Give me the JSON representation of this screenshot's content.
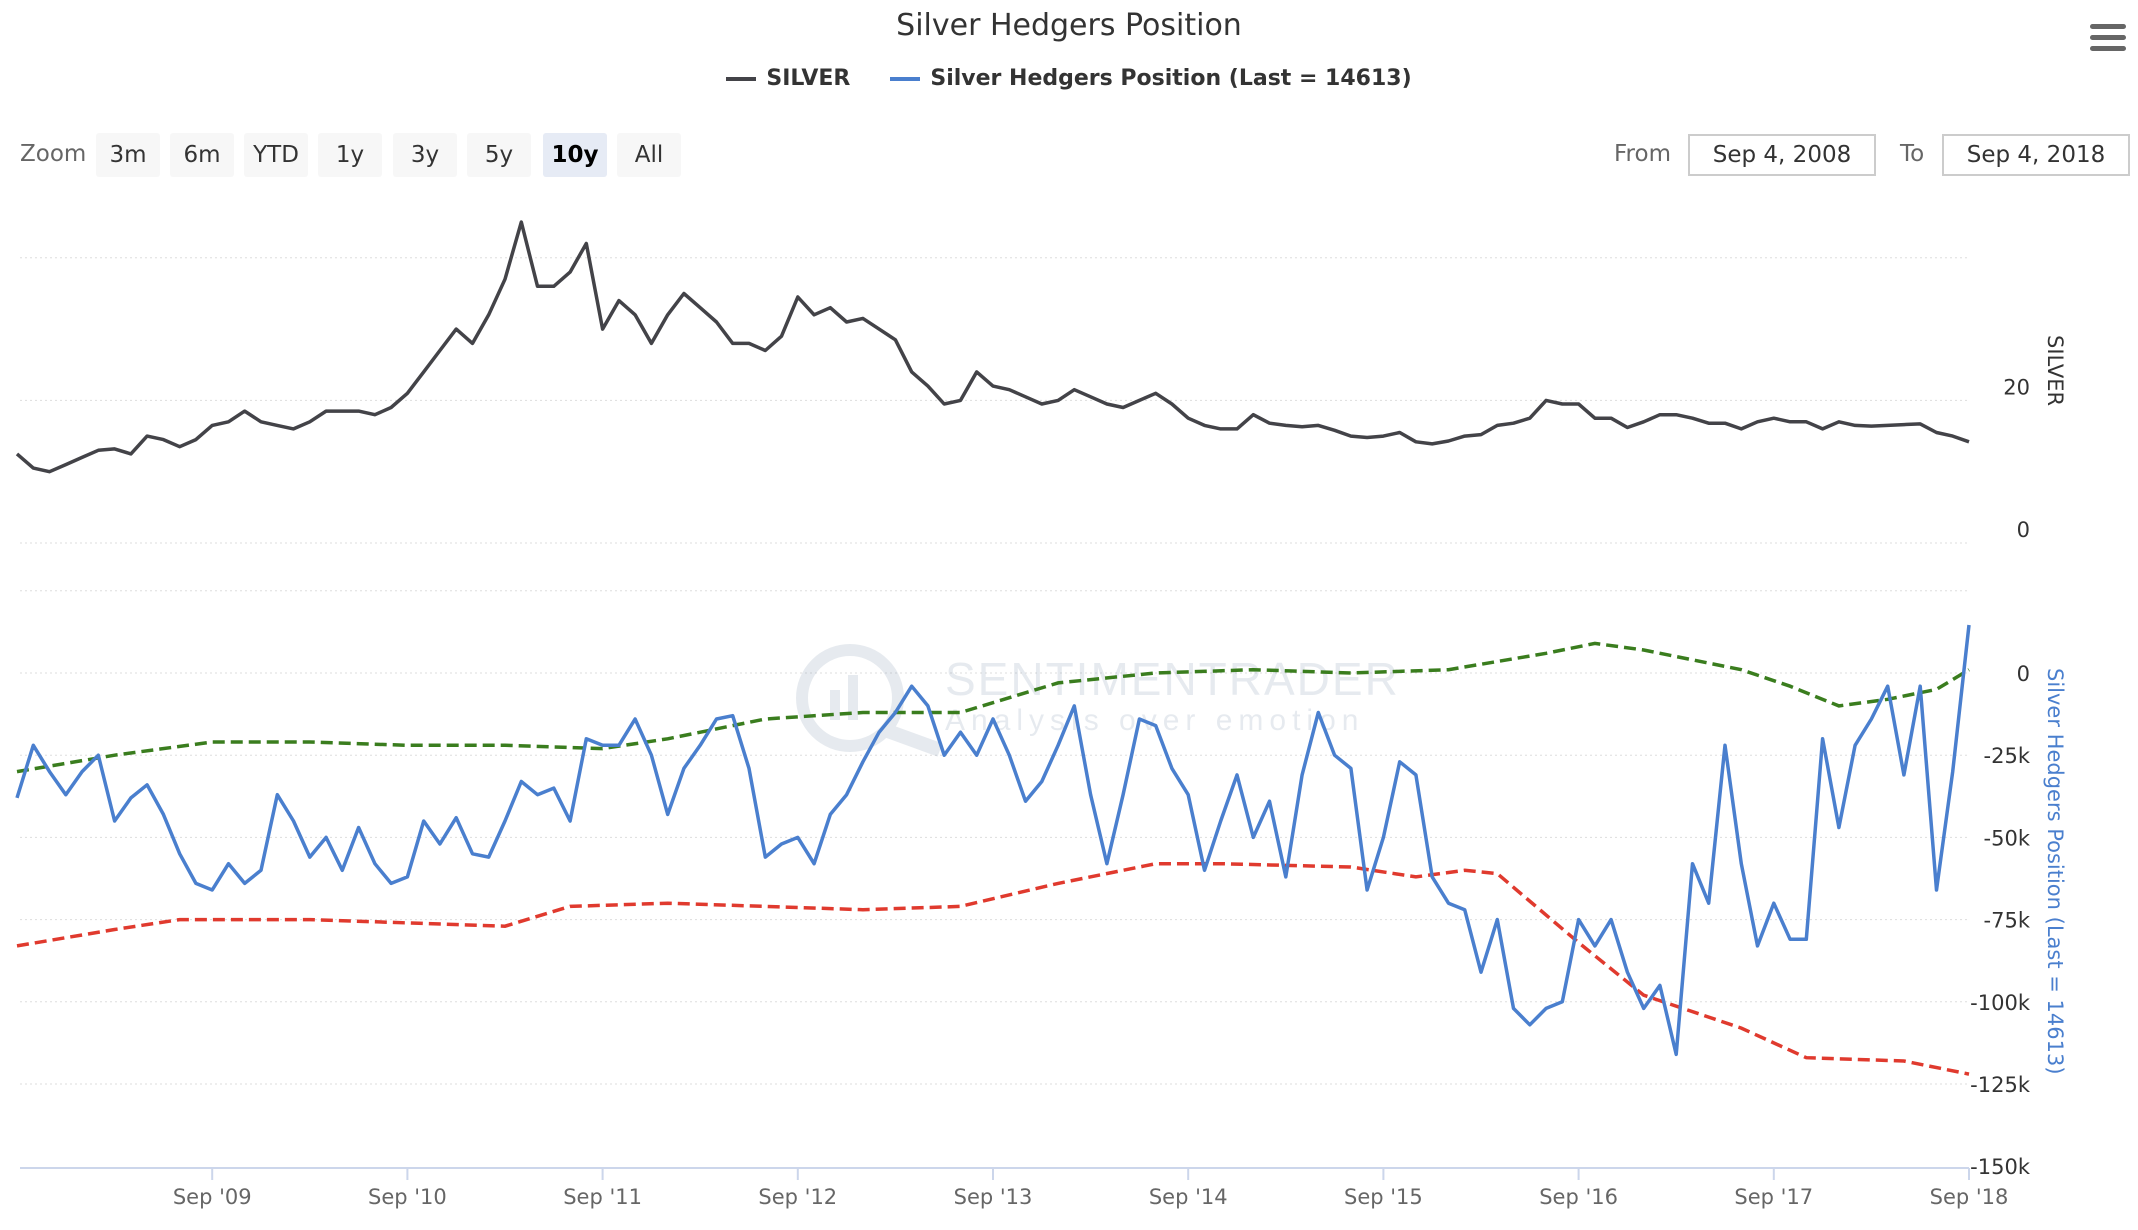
{
  "title": "Silver Hedgers Position",
  "legend": [
    {
      "label": "SILVER",
      "color": "#434348"
    },
    {
      "label": "Silver Hedgers Position (Last = 14613)",
      "color": "#4a7fce"
    }
  ],
  "range_selector": {
    "zoom_label": "Zoom",
    "buttons": [
      "3m",
      "6m",
      "YTD",
      "1y",
      "3y",
      "5y",
      "10y",
      "All"
    ],
    "active": "10y",
    "from_label": "From",
    "from_value": "Sep 4, 2008",
    "to_label": "To",
    "to_value": "Sep 4, 2018"
  },
  "watermark": {
    "brand": "SENTIMENTRADER",
    "tagline": "Analysis over emotion"
  },
  "chart_data": {
    "type": "line",
    "title": "Silver Hedgers Position",
    "x_start": "2008-09",
    "x_step": "month",
    "xticks": [
      "Sep '09",
      "Sep '10",
      "Sep '11",
      "Sep '12",
      "Sep '13",
      "Sep '14",
      "Sep '15",
      "Sep '16",
      "Sep '17",
      "Sep '18"
    ],
    "panes": [
      {
        "axis_title": "SILVER",
        "ylim": [
          0,
          50
        ],
        "yticks": [
          {
            "v": 0,
            "label": "0"
          },
          {
            "v": 20,
            "label": "20"
          },
          {
            "v": 40,
            "label": ""
          }
        ],
        "series": [
          {
            "name": "SILVER",
            "color": "#434348",
            "style": "solid",
            "values": [
              12.5,
              10.5,
              10,
              11,
              12,
              13,
              13.2,
              12.5,
              15,
              14.5,
              13.5,
              14.5,
              16.5,
              17,
              18.5,
              17,
              16.5,
              16,
              17,
              18.5,
              18.5,
              18.5,
              18,
              19,
              21,
              24,
              27,
              30,
              28,
              32,
              37,
              45,
              36,
              36,
              38,
              42,
              30,
              34,
              32,
              28,
              32,
              35,
              33,
              31,
              28,
              28,
              27,
              29,
              34.5,
              32,
              33,
              31,
              31.5,
              30,
              28.5,
              24,
              22,
              19.5,
              20,
              24,
              22,
              21.5,
              20.5,
              19.5,
              20,
              21.5,
              20.5,
              19.5,
              19,
              20,
              21,
              19.5,
              17.5,
              16.5,
              16,
              16,
              18,
              16.8,
              16.5,
              16.3,
              16.5,
              15.8,
              15,
              14.8,
              15,
              15.5,
              14.2,
              13.9,
              14.3,
              15,
              15.2,
              16.5,
              16.8,
              17.5,
              20,
              19.5,
              19.5,
              17.5,
              17.5,
              16.2,
              17,
              18,
              18,
              17.5,
              16.8,
              16.8,
              16,
              17,
              17.5,
              17,
              17,
              16,
              17,
              16.5,
              16.4,
              16.5,
              16.6,
              16.7,
              15.5,
              15,
              14.2
            ]
          }
        ]
      },
      {
        "axis_title": "Silver Hedgers Position (Last = 14613)",
        "ylim": [
          -150000,
          25000
        ],
        "yticks": [
          {
            "v": 0,
            "label": "0"
          },
          {
            "v": -25000,
            "label": "-25k"
          },
          {
            "v": -50000,
            "label": "-50k"
          },
          {
            "v": -75000,
            "label": "-75k"
          },
          {
            "v": -100000,
            "label": "-100k"
          },
          {
            "v": -125000,
            "label": "-125k"
          },
          {
            "v": -150000,
            "label": "-150k"
          }
        ],
        "series": [
          {
            "name": "Silver Hedgers Position",
            "color": "#4a7fce",
            "style": "solid",
            "unit": "thousand",
            "values": [
              -38,
              -22,
              -30,
              -37,
              -30,
              -25,
              -45,
              -38,
              -34,
              -43,
              -55,
              -64,
              -66,
              -58,
              -64,
              -60,
              -37,
              -45,
              -56,
              -50,
              -60,
              -47,
              -58,
              -64,
              -62,
              -45,
              -52,
              -44,
              -55,
              -56,
              -45,
              -33,
              -37,
              -35,
              -45,
              -20,
              -22,
              -22,
              -14,
              -25,
              -43,
              -29,
              -22,
              -14,
              -13,
              -29,
              -56,
              -52,
              -50,
              -58,
              -43,
              -37,
              -27,
              -18,
              -12,
              -4,
              -10,
              -25,
              -18,
              -25,
              -14,
              -25,
              -39,
              -33,
              -22,
              -10,
              -37,
              -58,
              -37,
              -14,
              -16,
              -29,
              -37,
              -60,
              -45,
              -31,
              -50,
              -39,
              -62,
              -31,
              -12,
              -25,
              -29,
              -66,
              -50,
              -27,
              -31,
              -62,
              -70,
              -72,
              -91,
              -75,
              -102,
              -107,
              -102,
              -100,
              -75,
              -83,
              -75,
              -91,
              -102,
              -95,
              -116,
              -58,
              -70,
              -22,
              -58,
              -83,
              -70,
              -81,
              -81,
              -20,
              -47,
              -22,
              -14,
              -4,
              -31,
              -4,
              -66,
              -30,
              14.613
            ]
          },
          {
            "name": "Upper band",
            "color": "#3a7d1e",
            "style": "dashed",
            "unit": "thousand",
            "points": [
              [
                0,
                -30
              ],
              [
                6,
                -25
              ],
              [
                12,
                -21
              ],
              [
                18,
                -21
              ],
              [
                24,
                -22
              ],
              [
                30,
                -22
              ],
              [
                36,
                -23
              ],
              [
                40,
                -20
              ],
              [
                46,
                -14
              ],
              [
                52,
                -12
              ],
              [
                58,
                -12
              ],
              [
                64,
                -3
              ],
              [
                70,
                0
              ],
              [
                76,
                1
              ],
              [
                82,
                0
              ],
              [
                88,
                1
              ],
              [
                94,
                6
              ],
              [
                97,
                9
              ],
              [
                100,
                7
              ],
              [
                106,
                1
              ],
              [
                109,
                -4
              ],
              [
                112,
                -10
              ],
              [
                115,
                -8
              ],
              [
                118,
                -5
              ],
              [
                120,
                1
              ]
            ]
          },
          {
            "name": "Lower band",
            "color": "#e03a2e",
            "style": "dashed",
            "unit": "thousand",
            "points": [
              [
                0,
                -83
              ],
              [
                6,
                -78
              ],
              [
                10,
                -75
              ],
              [
                18,
                -75
              ],
              [
                24,
                -76
              ],
              [
                30,
                -77
              ],
              [
                34,
                -71
              ],
              [
                40,
                -70
              ],
              [
                46,
                -71
              ],
              [
                52,
                -72
              ],
              [
                58,
                -71
              ],
              [
                64,
                -64
              ],
              [
                70,
                -58
              ],
              [
                74,
                -58
              ],
              [
                82,
                -59
              ],
              [
                86,
                -62
              ],
              [
                89,
                -60
              ],
              [
                91,
                -61
              ],
              [
                96,
                -82
              ],
              [
                100,
                -98
              ],
              [
                106,
                -108
              ],
              [
                110,
                -117
              ],
              [
                116,
                -118
              ],
              [
                120,
                -122
              ]
            ]
          }
        ]
      }
    ]
  }
}
